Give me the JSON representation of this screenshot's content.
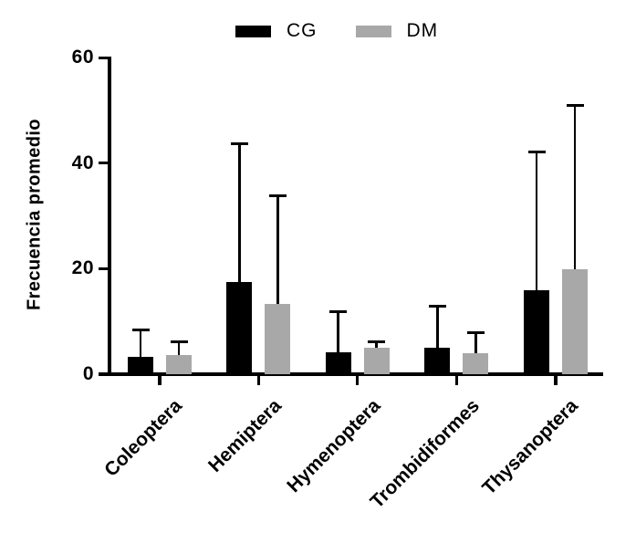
{
  "chart_data": {
    "type": "bar",
    "title": "",
    "ylabel": "Frecuencia promedio",
    "xlabel": "",
    "ylim": [
      0,
      60
    ],
    "yticks": [
      0,
      20,
      40,
      60
    ],
    "grid": false,
    "legend_position": "top",
    "error_bars": "upper_only_sd",
    "categories": [
      "Coleoptera",
      "Hemiptera",
      "Hymenoptera",
      "Trombidiformes",
      "Thysanoptera"
    ],
    "series": [
      {
        "name": "CG",
        "color": "#000000",
        "values": [
          3.2,
          17.4,
          4.0,
          4.9,
          15.9
        ],
        "error_plus": [
          5.3,
          26.6,
          8.1,
          8.2,
          26.5
        ]
      },
      {
        "name": "DM",
        "color": "#a8a8a8",
        "values": [
          3.5,
          13.2,
          5.0,
          3.9,
          19.9
        ],
        "error_plus": [
          2.9,
          20.9,
          1.4,
          4.1,
          31.3
        ]
      }
    ]
  },
  "legend": {
    "items": [
      {
        "label": "CG",
        "color": "#000000"
      },
      {
        "label": "DM",
        "color": "#a8a8a8"
      }
    ]
  }
}
